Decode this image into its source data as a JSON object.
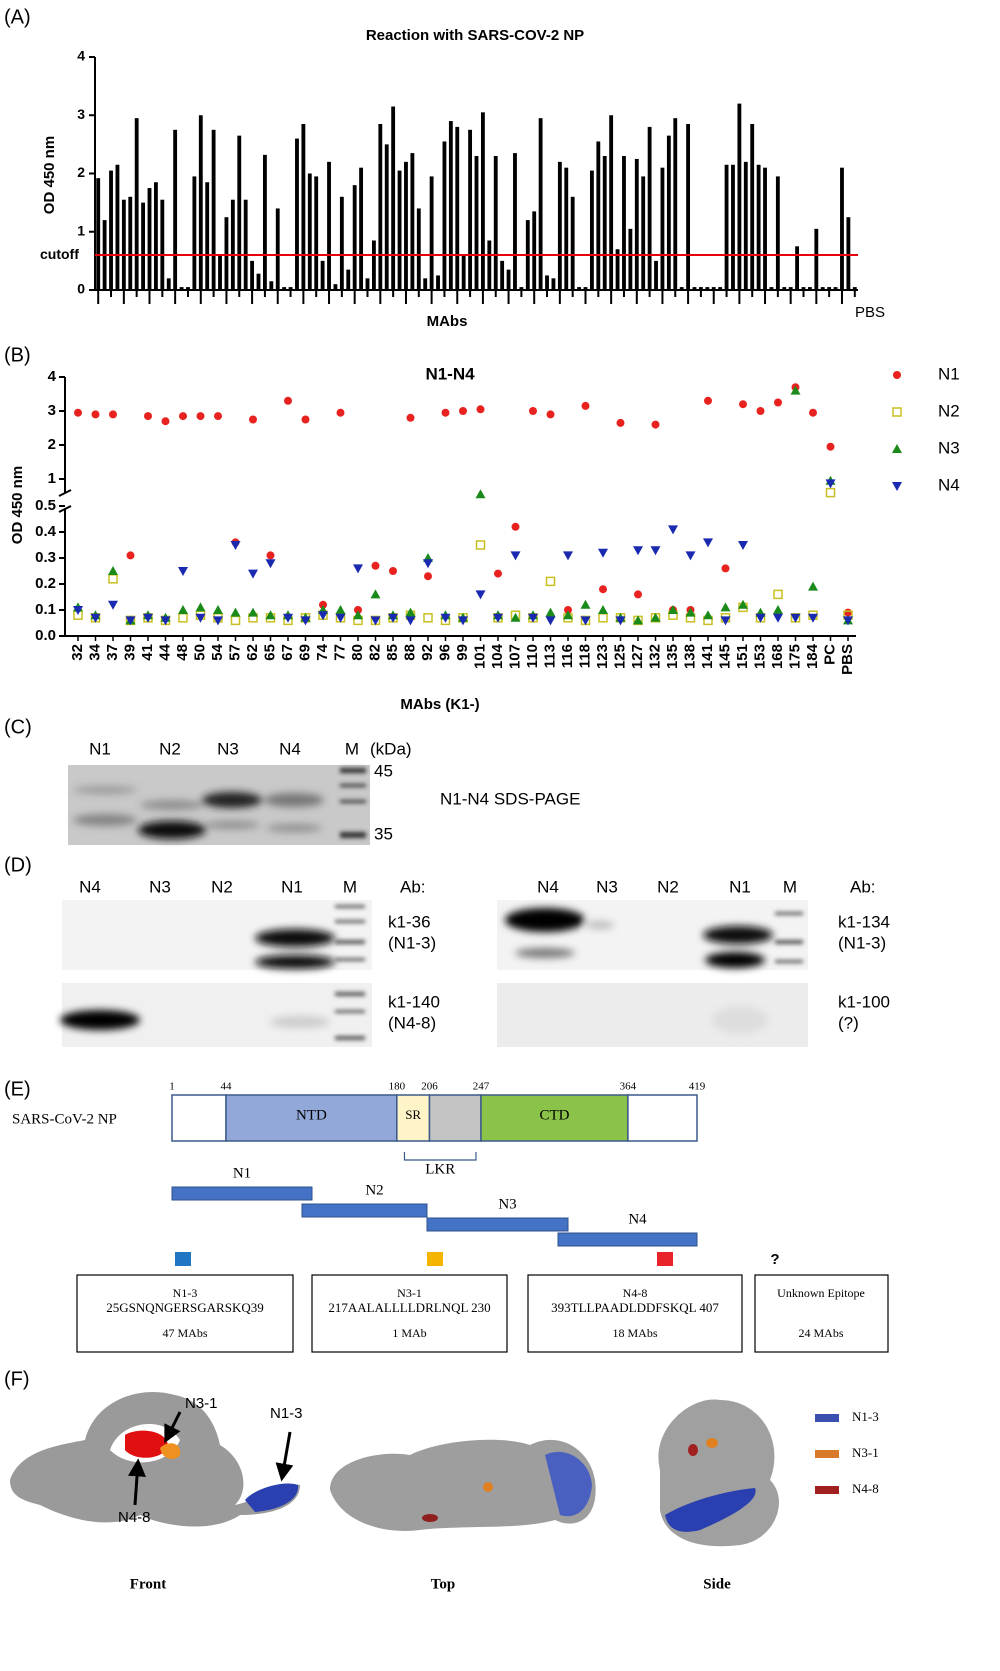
{
  "panel_labels": [
    "(A)",
    "(B)",
    "(C)",
    "(D)",
    "(E)",
    "(F)"
  ],
  "chart_data": [
    {
      "type": "bar",
      "title": "Reaction with SARS-COV-2 NP",
      "y_label": "OD 450 nm",
      "x_label": "MAbs",
      "x_end_label": "PBS",
      "color": "#000000",
      "values": [
        1.92,
        1.2,
        2.05,
        2.15,
        1.55,
        1.6,
        2.95,
        1.5,
        1.75,
        1.85,
        1.55,
        0.2,
        2.75,
        0.05,
        0.05,
        1.95,
        3.0,
        1.85,
        2.75,
        0.6,
        1.25,
        1.55,
        2.65,
        1.55,
        0.5,
        0.28,
        2.32,
        0.15,
        1.4,
        0.05,
        0.05,
        2.6,
        2.85,
        2.0,
        1.95,
        0.5,
        2.2,
        0.1,
        1.6,
        0.35,
        1.8,
        2.1,
        0.2,
        0.85,
        2.85,
        2.5,
        3.15,
        2.05,
        2.2,
        2.35,
        1.4,
        0.2,
        1.95,
        0.25,
        2.55,
        2.9,
        2.8,
        0.6,
        2.75,
        2.3,
        3.05,
        0.85,
        2.3,
        0.5,
        0.35,
        2.35,
        0.05,
        1.2,
        1.35,
        2.95,
        0.25,
        0.2,
        2.2,
        2.1,
        1.6,
        0.05,
        0.05,
        2.05,
        2.55,
        2.3,
        3.0,
        0.7,
        2.3,
        1.05,
        2.25,
        1.95,
        2.8,
        0.5,
        2.1,
        2.65,
        2.95,
        0.05,
        2.85,
        0.05,
        0.05,
        0.05,
        0.05,
        0.05,
        2.15,
        2.15,
        3.2,
        2.2,
        2.85,
        2.15,
        2.1,
        0.05,
        1.95,
        0.05,
        0.05,
        0.75,
        0.05,
        0.05,
        1.05,
        0.05,
        0.05,
        0.05,
        2.1,
        1.25,
        0.05
      ],
      "ylim": [
        0,
        4
      ],
      "yticks": [
        0,
        1,
        2,
        3,
        4
      ],
      "cutoff": {
        "label": "cutoff",
        "value": 0.6,
        "color": "#e8000b"
      }
    },
    {
      "type": "scatter",
      "title": "N1-N4",
      "y_label": "OD 450 nm",
      "x_label": "MAbs (K1-)",
      "categories": [
        "32",
        "34",
        "37",
        "39",
        "41",
        "44",
        "48",
        "50",
        "54",
        "57",
        "62",
        "65",
        "67",
        "69",
        "74",
        "77",
        "80",
        "82",
        "85",
        "88",
        "92",
        "96",
        "99",
        "101",
        "104",
        "107",
        "110",
        "113",
        "116",
        "118",
        "123",
        "125",
        "127",
        "132",
        "135",
        "138",
        "141",
        "145",
        "151",
        "153",
        "168",
        "175",
        "184",
        "PC",
        "PBS"
      ],
      "series": [
        {
          "name": "N1",
          "color": "#e8231f",
          "marker": "circle",
          "values": [
            2.95,
            2.9,
            2.9,
            0.31,
            2.85,
            2.7,
            2.85,
            2.85,
            2.85,
            0.36,
            2.75,
            0.31,
            3.3,
            2.75,
            0.12,
            2.95,
            0.1,
            0.27,
            0.25,
            2.8,
            0.23,
            2.95,
            3.0,
            3.05,
            0.24,
            0.42,
            3.0,
            2.9,
            0.1,
            3.15,
            0.18,
            2.65,
            0.16,
            2.6,
            0.1,
            0.1,
            3.3,
            0.26,
            3.2,
            3.0,
            3.25,
            3.7,
            2.95,
            1.95,
            0.09
          ]
        },
        {
          "name": "N2",
          "color": "#c8c020",
          "marker": "square",
          "values": [
            0.08,
            0.07,
            0.22,
            0.06,
            0.07,
            0.06,
            0.07,
            0.08,
            0.07,
            0.06,
            0.07,
            0.07,
            0.06,
            0.07,
            0.08,
            0.07,
            0.06,
            0.06,
            0.07,
            0.08,
            0.07,
            0.06,
            0.07,
            0.35,
            0.07,
            0.08,
            0.07,
            0.21,
            0.07,
            0.06,
            0.07,
            0.07,
            0.06,
            0.07,
            0.08,
            0.07,
            0.06,
            0.07,
            0.11,
            0.07,
            0.16,
            0.07,
            0.08,
            0.6,
            0.08
          ]
        },
        {
          "name": "N3",
          "color": "#1a8a1a",
          "marker": "triangle",
          "values": [
            0.11,
            0.08,
            0.25,
            0.06,
            0.08,
            0.07,
            0.1,
            0.11,
            0.1,
            0.09,
            0.09,
            0.08,
            0.08,
            0.07,
            0.1,
            0.1,
            0.08,
            0.16,
            0.08,
            0.09,
            0.3,
            0.08,
            0.07,
            0.55,
            0.08,
            0.07,
            0.08,
            0.09,
            0.08,
            0.12,
            0.1,
            0.07,
            0.06,
            0.07,
            0.1,
            0.09,
            0.08,
            0.11,
            0.12,
            0.09,
            0.1,
            3.6,
            0.19,
            0.95,
            0.06
          ]
        },
        {
          "name": "N4",
          "color": "#1a2ab0",
          "marker": "triangle-down",
          "values": [
            0.1,
            0.07,
            0.12,
            0.06,
            0.07,
            0.06,
            0.25,
            0.07,
            0.06,
            0.35,
            0.24,
            0.28,
            0.07,
            0.06,
            0.08,
            0.07,
            0.26,
            0.06,
            0.07,
            0.06,
            0.28,
            0.07,
            0.06,
            0.16,
            0.07,
            0.31,
            0.07,
            0.06,
            0.31,
            0.06,
            0.32,
            0.06,
            0.33,
            0.33,
            0.41,
            0.31,
            0.36,
            0.06,
            0.35,
            0.07,
            0.07,
            0.07,
            0.07,
            0.87,
            0.06
          ]
        }
      ],
      "ylim": [
        0,
        4
      ],
      "y_break": 0.5,
      "yticks": [
        {
          "value": 0,
          "label": "0.0"
        },
        0.1,
        0.2,
        0.3,
        0.4,
        0.5,
        1,
        2,
        3,
        4
      ],
      "legend": "right"
    }
  ],
  "sds_page": {
    "lanes": [
      "N1",
      "N2",
      "N3",
      "N4",
      "M"
    ],
    "unit": "(kDa)",
    "markers": [
      45,
      35
    ],
    "caption": "N1-N4 SDS-PAGE"
  },
  "western": [
    {
      "lanes": [
        "N4",
        "N3",
        "N2",
        "N1",
        "M"
      ],
      "ab_label": "Ab:",
      "blots": [
        {
          "ab": "k1-36",
          "epitope": "(N1-3)"
        },
        {
          "ab": "k1-140",
          "epitope": "(N4-8)"
        }
      ]
    },
    {
      "lanes": [
        "N4",
        "N3",
        "N2",
        "N1",
        "M"
      ],
      "ab_label": "Ab:",
      "blots": [
        {
          "ab": "k1-134",
          "epitope": "(N1-3)"
        },
        {
          "ab": "k1-100",
          "epitope": "(?)"
        }
      ]
    }
  ],
  "np_map": {
    "protein": "SARS-CoV-2 NP",
    "positions": [
      1,
      44,
      180,
      206,
      247,
      364,
      419
    ],
    "domains": [
      {
        "name": "NTD",
        "color": "#91a8d8"
      },
      {
        "name": "SR",
        "color": "#fff3c8"
      },
      {
        "name": "CTD",
        "color": "#8bc34a"
      }
    ],
    "linker": "LKR",
    "fragments": [
      "N1",
      "N2",
      "N3",
      "N4"
    ],
    "epitopes": [
      {
        "name": "N1-3",
        "sequence": "25GSNQNGERSGARSKQ39",
        "count": "47 MAbs",
        "color": "#1f77c4"
      },
      {
        "name": "N3-1",
        "sequence": "217AALALLLLDRLNQL 230",
        "count": "1 MAb",
        "color": "#f5b400"
      },
      {
        "name": "N4-8",
        "sequence": "393TLLPAADLDDFSKQL 407",
        "count": "18 MAbs",
        "color": "#e8232a"
      }
    ],
    "unknown": {
      "mark": "?",
      "name": "Unknown Epitope",
      "count": "24 MAbs"
    }
  },
  "structure": {
    "views": [
      "Front",
      "Top",
      "Side"
    ],
    "callouts": [
      "N3-1",
      "N1-3",
      "N4-8"
    ],
    "legend": [
      {
        "name": "N1-3",
        "color": "#3a50b0"
      },
      {
        "name": "N3-1",
        "color": "#d87a2a"
      },
      {
        "name": "N4-8",
        "color": "#a02020"
      }
    ]
  }
}
